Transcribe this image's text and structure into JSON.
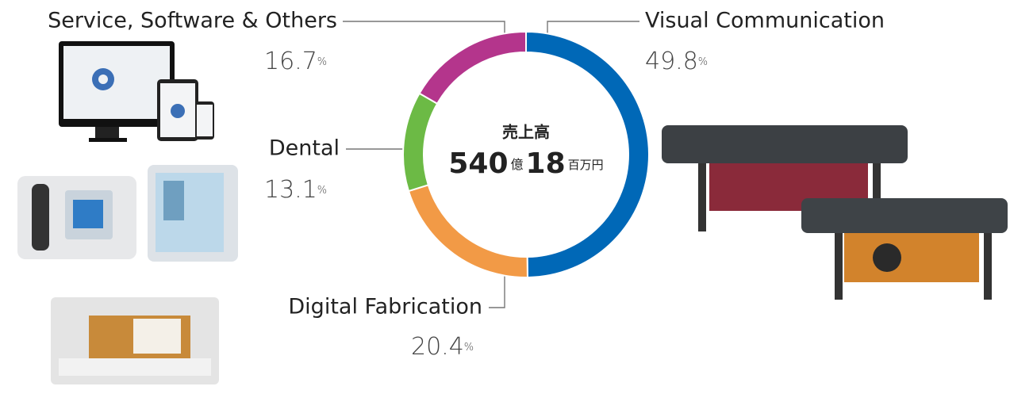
{
  "chart_data": {
    "type": "pie",
    "categories": [
      "Visual Communication",
      "Digital Fabrication",
      "Dental",
      "Service, Software & Others"
    ],
    "values": [
      49.8,
      20.4,
      13.1,
      16.7
    ],
    "value_labels": [
      "49.8%",
      "20.4%",
      "13.1%",
      "16.7%"
    ],
    "colors": [
      "#0068b7",
      "#f29a46",
      "#6cba45",
      "#b4358c"
    ],
    "center_title": "売上高",
    "center_total": [
      540,
      "億",
      18,
      "百万円"
    ]
  }
}
